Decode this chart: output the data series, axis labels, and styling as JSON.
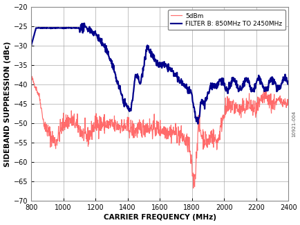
{
  "title": "",
  "xlabel": "CARRIER FREQUENCY (MHz)",
  "ylabel": "SIDEBAND SUPPRESSION (dBc)",
  "xlim": [
    800,
    2400
  ],
  "ylim": [
    -70,
    -20
  ],
  "xticks": [
    800,
    1000,
    1200,
    1400,
    1600,
    1800,
    2000,
    2200,
    2400
  ],
  "yticks": [
    -70,
    -65,
    -60,
    -55,
    -50,
    -45,
    -40,
    -35,
    -30,
    -25,
    -20
  ],
  "legend_labels": [
    "5dBm",
    "FILTER B: 850MHz TO 2450MHz"
  ],
  "line_colors": [
    "#FF6B6B",
    "#00008B"
  ],
  "background_color": "#FFFFFF",
  "grid_color": "#AAAAAA",
  "watermark": "10921-004"
}
